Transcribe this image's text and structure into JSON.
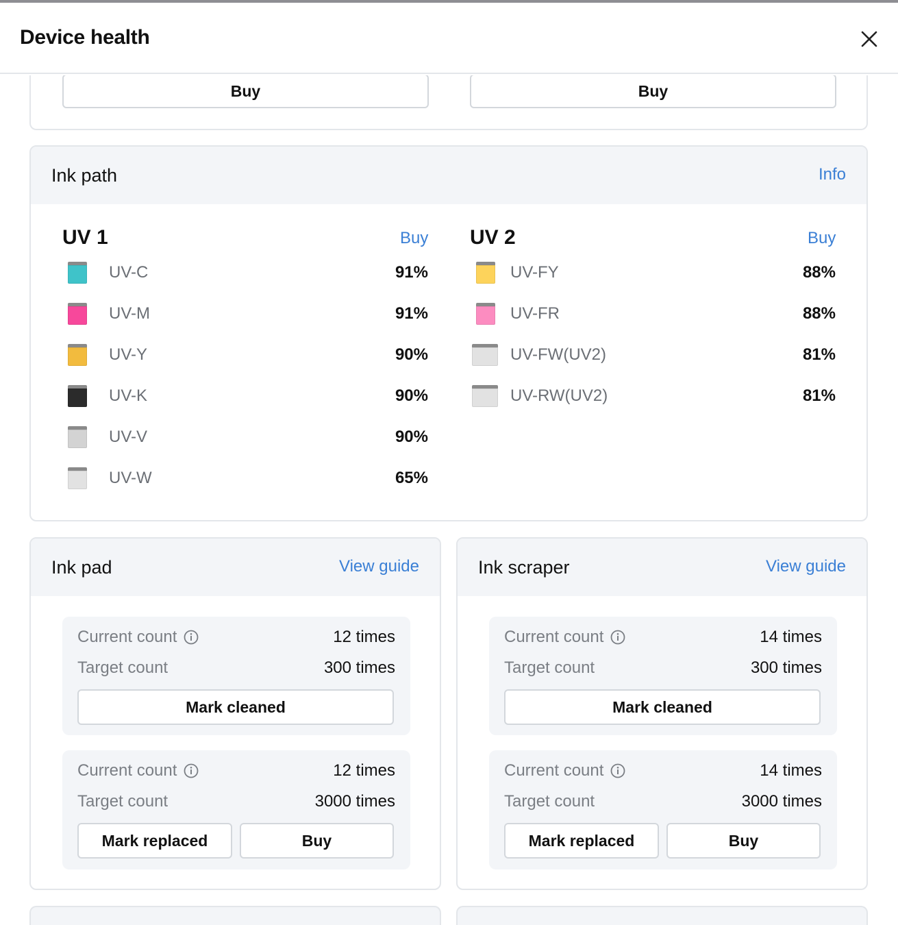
{
  "header": {
    "title": "Device health",
    "close_icon": "close-icon"
  },
  "top_card": {
    "buttons": [
      "Buy",
      "Buy"
    ]
  },
  "ink_path": {
    "title": "Ink path",
    "info_link": "Info",
    "groups": [
      {
        "name": "UV 1",
        "buy": "Buy",
        "inks": [
          {
            "name": "UV-C",
            "percent": "91%",
            "color": "#3fc3c9"
          },
          {
            "name": "UV-M",
            "percent": "91%",
            "color": "#f7489b"
          },
          {
            "name": "UV-Y",
            "percent": "90%",
            "color": "#f2bb3e"
          },
          {
            "name": "UV-K",
            "percent": "90%",
            "color": "#2b2b2b"
          },
          {
            "name": "UV-V",
            "percent": "90%",
            "color": "#d3d3d3"
          },
          {
            "name": "UV-W",
            "percent": "65%",
            "color": "#e2e2e2"
          }
        ]
      },
      {
        "name": "UV 2",
        "buy": "Buy",
        "inks": [
          {
            "name": "UV-FY",
            "percent": "88%",
            "color": "#fdd35b"
          },
          {
            "name": "UV-FR",
            "percent": "88%",
            "color": "#fc8cc0"
          },
          {
            "name": "UV-FW(UV2)",
            "percent": "81%",
            "color": "#e2e2e2"
          },
          {
            "name": "UV-RW(UV2)",
            "percent": "81%",
            "color": "#e2e2e2"
          }
        ]
      }
    ]
  },
  "ink_pad": {
    "title": "Ink pad",
    "guide_link": "View guide",
    "clean_block": {
      "current_label": "Current count",
      "current_value": "12 times",
      "target_label": "Target count",
      "target_value": "300 times",
      "action": "Mark cleaned"
    },
    "replace_block": {
      "current_label": "Current count",
      "current_value": "12 times",
      "target_label": "Target count",
      "target_value": "3000 times",
      "action": "Mark replaced",
      "buy": "Buy"
    }
  },
  "ink_scraper": {
    "title": "Ink scraper",
    "guide_link": "View guide",
    "clean_block": {
      "current_label": "Current count",
      "current_value": "14 times",
      "target_label": "Target count",
      "target_value": "300 times",
      "action": "Mark cleaned"
    },
    "replace_block": {
      "current_label": "Current count",
      "current_value": "14 times",
      "target_label": "Target count",
      "target_value": "3000 times",
      "action": "Mark replaced",
      "buy": "Buy"
    }
  },
  "colors": {
    "accent": "#3a7fd5",
    "panel_bg": "#f3f5f8",
    "border": "#e3e6ea"
  }
}
